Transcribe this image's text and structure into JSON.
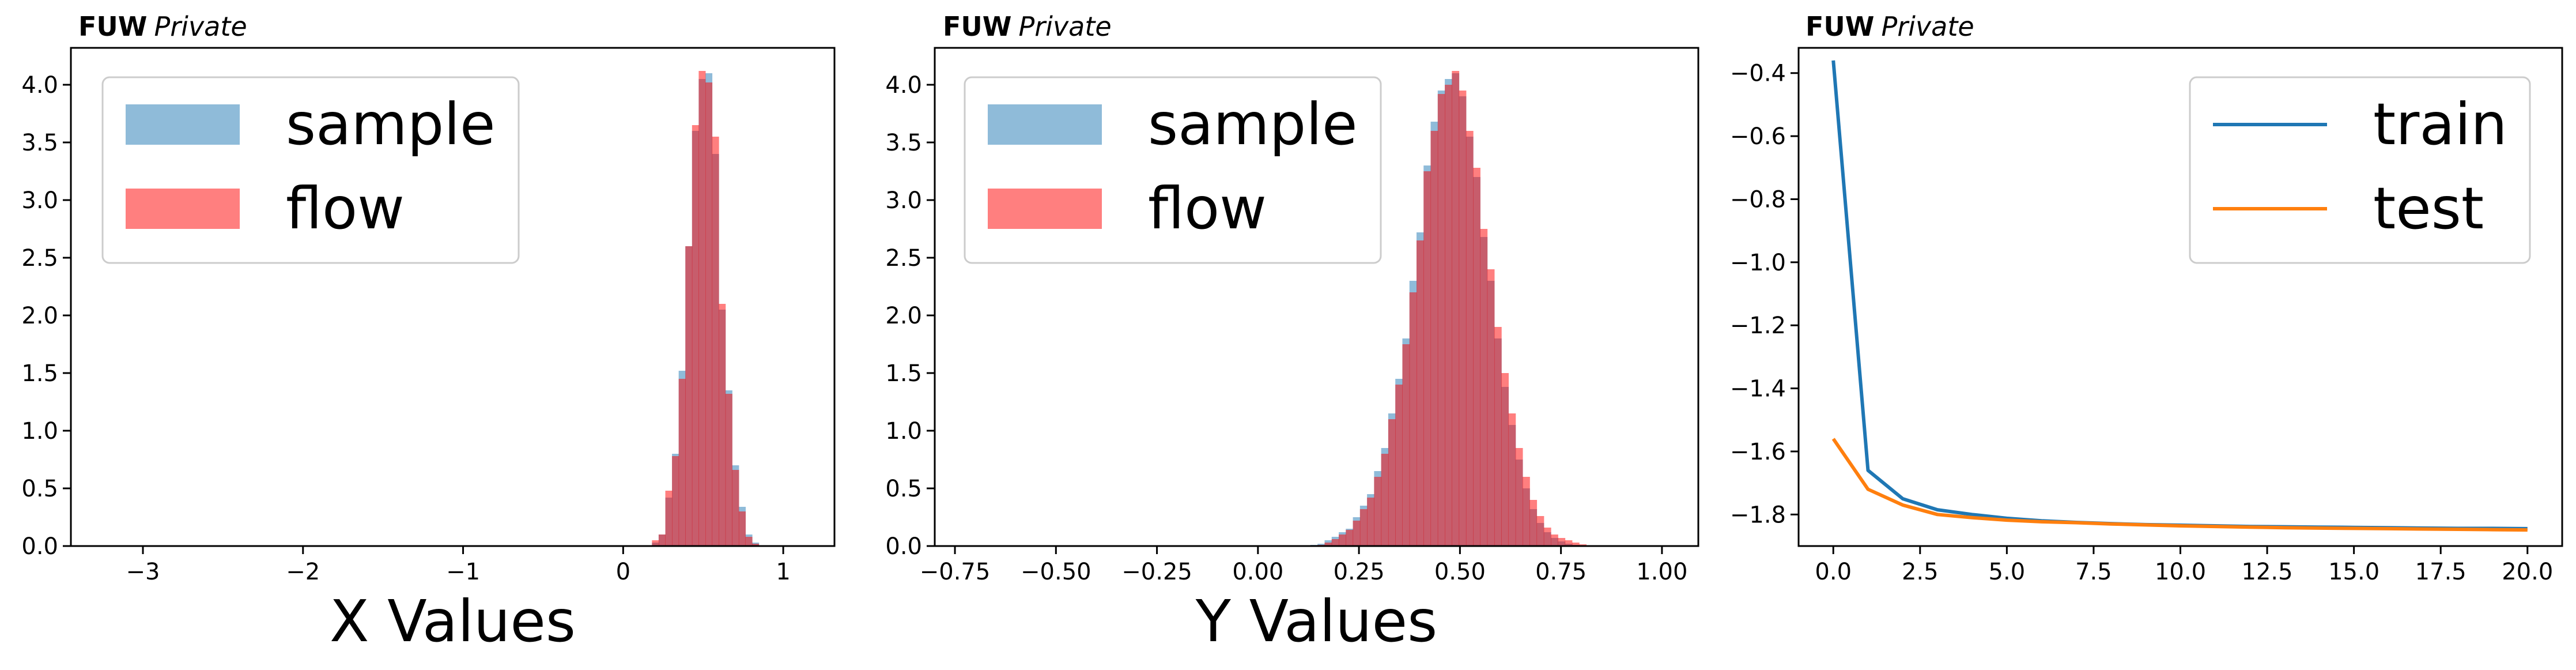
{
  "chart_data": [
    {
      "type": "histogram",
      "header": {
        "bold": "FUW",
        "italic": "Private"
      },
      "xlabel": "X Values",
      "ylabel": "",
      "xlim": [
        -3.45,
        1.32
      ],
      "ylim": [
        0,
        4.32
      ],
      "xticks": [
        -3,
        -2,
        -1,
        0,
        1
      ],
      "xtick_labels": [
        "−3",
        "−2",
        "−1",
        "0",
        "1"
      ],
      "yticks": [
        0,
        0.5,
        1.0,
        1.5,
        2.0,
        2.5,
        3.0,
        3.5,
        4.0
      ],
      "ytick_labels": [
        "0.0",
        "0.5",
        "1.0",
        "1.5",
        "2.0",
        "2.5",
        "3.0",
        "3.5",
        "4.0"
      ],
      "grid": false,
      "legend_position": "top-left",
      "bin_start": 0.18,
      "bin_width": 0.0417,
      "series": [
        {
          "name": "sample",
          "color": "#1f77b4",
          "opacity": 0.5,
          "values": [
            0.03,
            0.1,
            0.42,
            0.8,
            1.52,
            2.6,
            3.6,
            4.05,
            4.1,
            3.4,
            2.05,
            1.35,
            0.7,
            0.34,
            0.1,
            0.03
          ]
        },
        {
          "name": "flow",
          "color": "#ff0000",
          "opacity": 0.5,
          "values": [
            0.05,
            0.1,
            0.48,
            0.78,
            1.45,
            2.6,
            3.65,
            4.12,
            4.02,
            3.55,
            2.1,
            1.32,
            0.66,
            0.3,
            0.08,
            0.02
          ]
        }
      ]
    },
    {
      "type": "histogram",
      "header": {
        "bold": "FUW",
        "italic": "Private"
      },
      "xlabel": "Y Values",
      "ylabel": "",
      "xlim": [
        -0.8,
        1.09
      ],
      "ylim": [
        0,
        4.32
      ],
      "xticks": [
        -0.75,
        -0.5,
        -0.25,
        0.0,
        0.25,
        0.5,
        0.75,
        1.0
      ],
      "xtick_labels": [
        "−0.75",
        "−0.50",
        "−0.25",
        "0.00",
        "0.25",
        "0.50",
        "0.75",
        "1.00"
      ],
      "yticks": [
        0,
        0.5,
        1.0,
        1.5,
        2.0,
        2.5,
        3.0,
        3.5,
        4.0
      ],
      "ytick_labels": [
        "0.0",
        "0.5",
        "1.0",
        "1.5",
        "2.0",
        "2.5",
        "3.0",
        "3.5",
        "4.0"
      ],
      "grid": false,
      "legend_position": "top-left",
      "bin_start": 0.13,
      "bin_width": 0.0175,
      "series": [
        {
          "name": "sample",
          "color": "#1f77b4",
          "opacity": 0.5,
          "values": [
            0.01,
            0.02,
            0.05,
            0.08,
            0.12,
            0.15,
            0.25,
            0.35,
            0.45,
            0.65,
            0.85,
            1.15,
            1.45,
            1.8,
            2.3,
            2.72,
            3.3,
            3.68,
            3.95,
            4.05,
            4.1,
            3.9,
            3.55,
            3.2,
            2.68,
            2.3,
            1.8,
            1.38,
            1.05,
            0.75,
            0.5,
            0.32,
            0.2,
            0.12,
            0.07,
            0.04,
            0.02,
            0.01,
            0.005,
            0.0
          ]
        },
        {
          "name": "flow",
          "color": "#ff0000",
          "opacity": 0.5,
          "values": [
            0.005,
            0.01,
            0.03,
            0.06,
            0.1,
            0.14,
            0.22,
            0.32,
            0.42,
            0.6,
            0.8,
            1.1,
            1.4,
            1.75,
            2.2,
            2.65,
            3.25,
            3.6,
            3.92,
            4.0,
            4.12,
            3.95,
            3.6,
            3.28,
            2.75,
            2.4,
            1.9,
            1.5,
            1.15,
            0.85,
            0.6,
            0.4,
            0.26,
            0.16,
            0.1,
            0.07,
            0.05,
            0.03,
            0.015,
            0.005
          ]
        }
      ]
    },
    {
      "type": "line",
      "header": {
        "bold": "FUW",
        "italic": "Private"
      },
      "xlabel": "",
      "ylabel": "",
      "xlim": [
        -1.0,
        21.0
      ],
      "ylim": [
        -1.9,
        -0.32
      ],
      "xticks": [
        0,
        2.5,
        5,
        7.5,
        10,
        12.5,
        15,
        17.5,
        20
      ],
      "xtick_labels": [
        "0.0",
        "2.5",
        "5.0",
        "7.5",
        "10.0",
        "12.5",
        "15.0",
        "17.5",
        "20.0"
      ],
      "yticks": [
        -0.4,
        -0.6,
        -0.8,
        -1.0,
        -1.2,
        -1.4,
        -1.6,
        -1.8
      ],
      "ytick_labels": [
        "−0.4",
        "−0.6",
        "−0.8",
        "−1.0",
        "−1.2",
        "−1.4",
        "−1.6",
        "−1.8"
      ],
      "grid": false,
      "legend_position": "top-right",
      "x": [
        0,
        1,
        2,
        3,
        4,
        5,
        6,
        7,
        8,
        9,
        10,
        11,
        12,
        13,
        14,
        15,
        16,
        17,
        18,
        19,
        20
      ],
      "series": [
        {
          "name": "train",
          "color": "#1f77b4",
          "values": [
            -0.36,
            -1.66,
            -1.75,
            -1.785,
            -1.8,
            -1.812,
            -1.82,
            -1.825,
            -1.829,
            -1.832,
            -1.834,
            -1.836,
            -1.838,
            -1.839,
            -1.84,
            -1.841,
            -1.842,
            -1.843,
            -1.844,
            -1.844,
            -1.845
          ]
        },
        {
          "name": "test",
          "color": "#ff7f0e",
          "values": [
            -1.56,
            -1.72,
            -1.77,
            -1.8,
            -1.81,
            -1.818,
            -1.823,
            -1.826,
            -1.83,
            -1.833,
            -1.836,
            -1.838,
            -1.84,
            -1.842,
            -1.843,
            -1.844,
            -1.845,
            -1.846,
            -1.847,
            -1.848,
            -1.849
          ]
        }
      ]
    }
  ]
}
